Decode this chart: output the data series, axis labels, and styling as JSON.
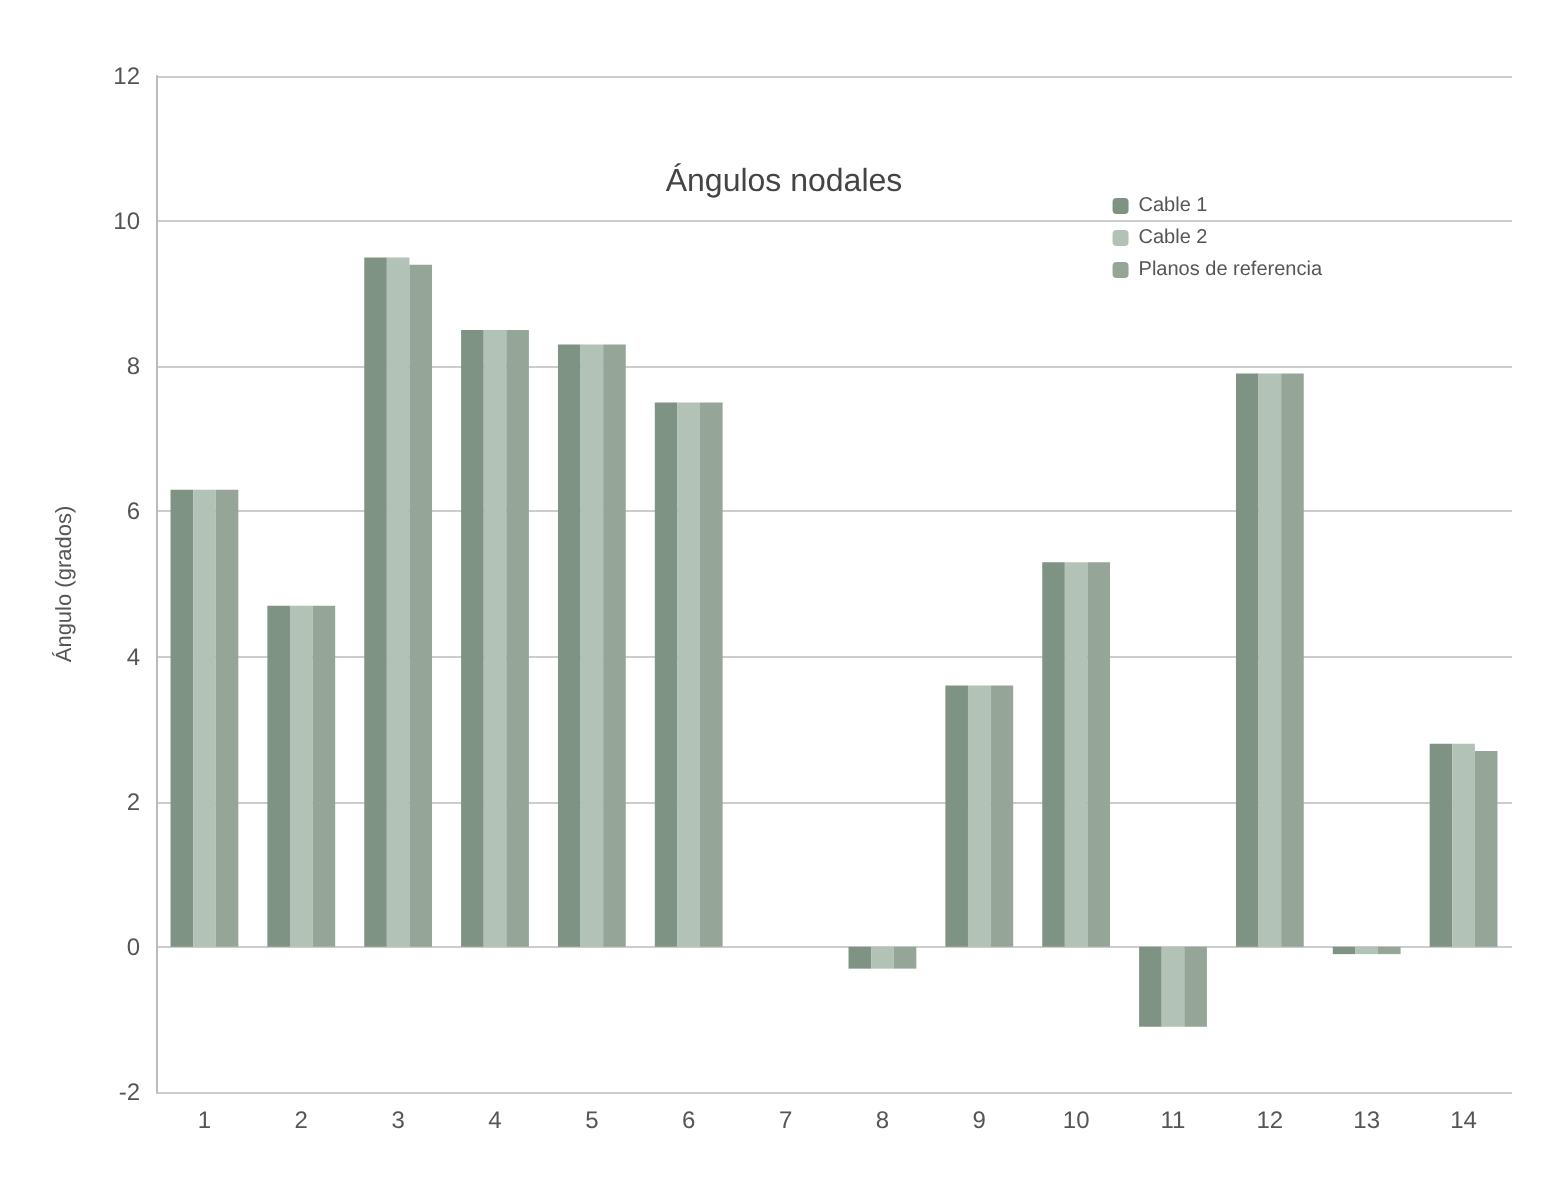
{
  "chart_data": {
    "type": "bar",
    "title": "Ángulos nodales",
    "ylabel": "Ángulo (grados)",
    "categories": [
      "1",
      "2",
      "3",
      "4",
      "5",
      "6",
      "7",
      "8",
      "9",
      "10",
      "11",
      "12",
      "13",
      "14"
    ],
    "series": [
      {
        "name": "Cable 1",
        "color": "#7f9384",
        "values": [
          6.3,
          4.7,
          9.5,
          8.5,
          8.3,
          7.5,
          0,
          -0.3,
          3.6,
          5.3,
          -1.1,
          7.9,
          -0.1,
          2.8
        ]
      },
      {
        "name": "Cable 2",
        "color": "#b3c2b6",
        "values": [
          6.3,
          4.7,
          9.5,
          8.5,
          8.3,
          7.5,
          0,
          -0.3,
          3.6,
          5.3,
          -1.1,
          7.9,
          -0.1,
          2.8
        ]
      },
      {
        "name": "Planos de referencia",
        "color": "#95a699",
        "values": [
          6.3,
          4.7,
          9.4,
          8.5,
          8.3,
          7.5,
          0,
          -0.3,
          3.6,
          5.3,
          -1.1,
          7.9,
          -0.1,
          2.7
        ]
      }
    ],
    "ylim": [
      -2,
      12
    ],
    "yticks": [
      -2,
      0,
      2,
      4,
      6,
      8,
      10,
      12
    ],
    "grid": "y",
    "legend": "top right"
  }
}
